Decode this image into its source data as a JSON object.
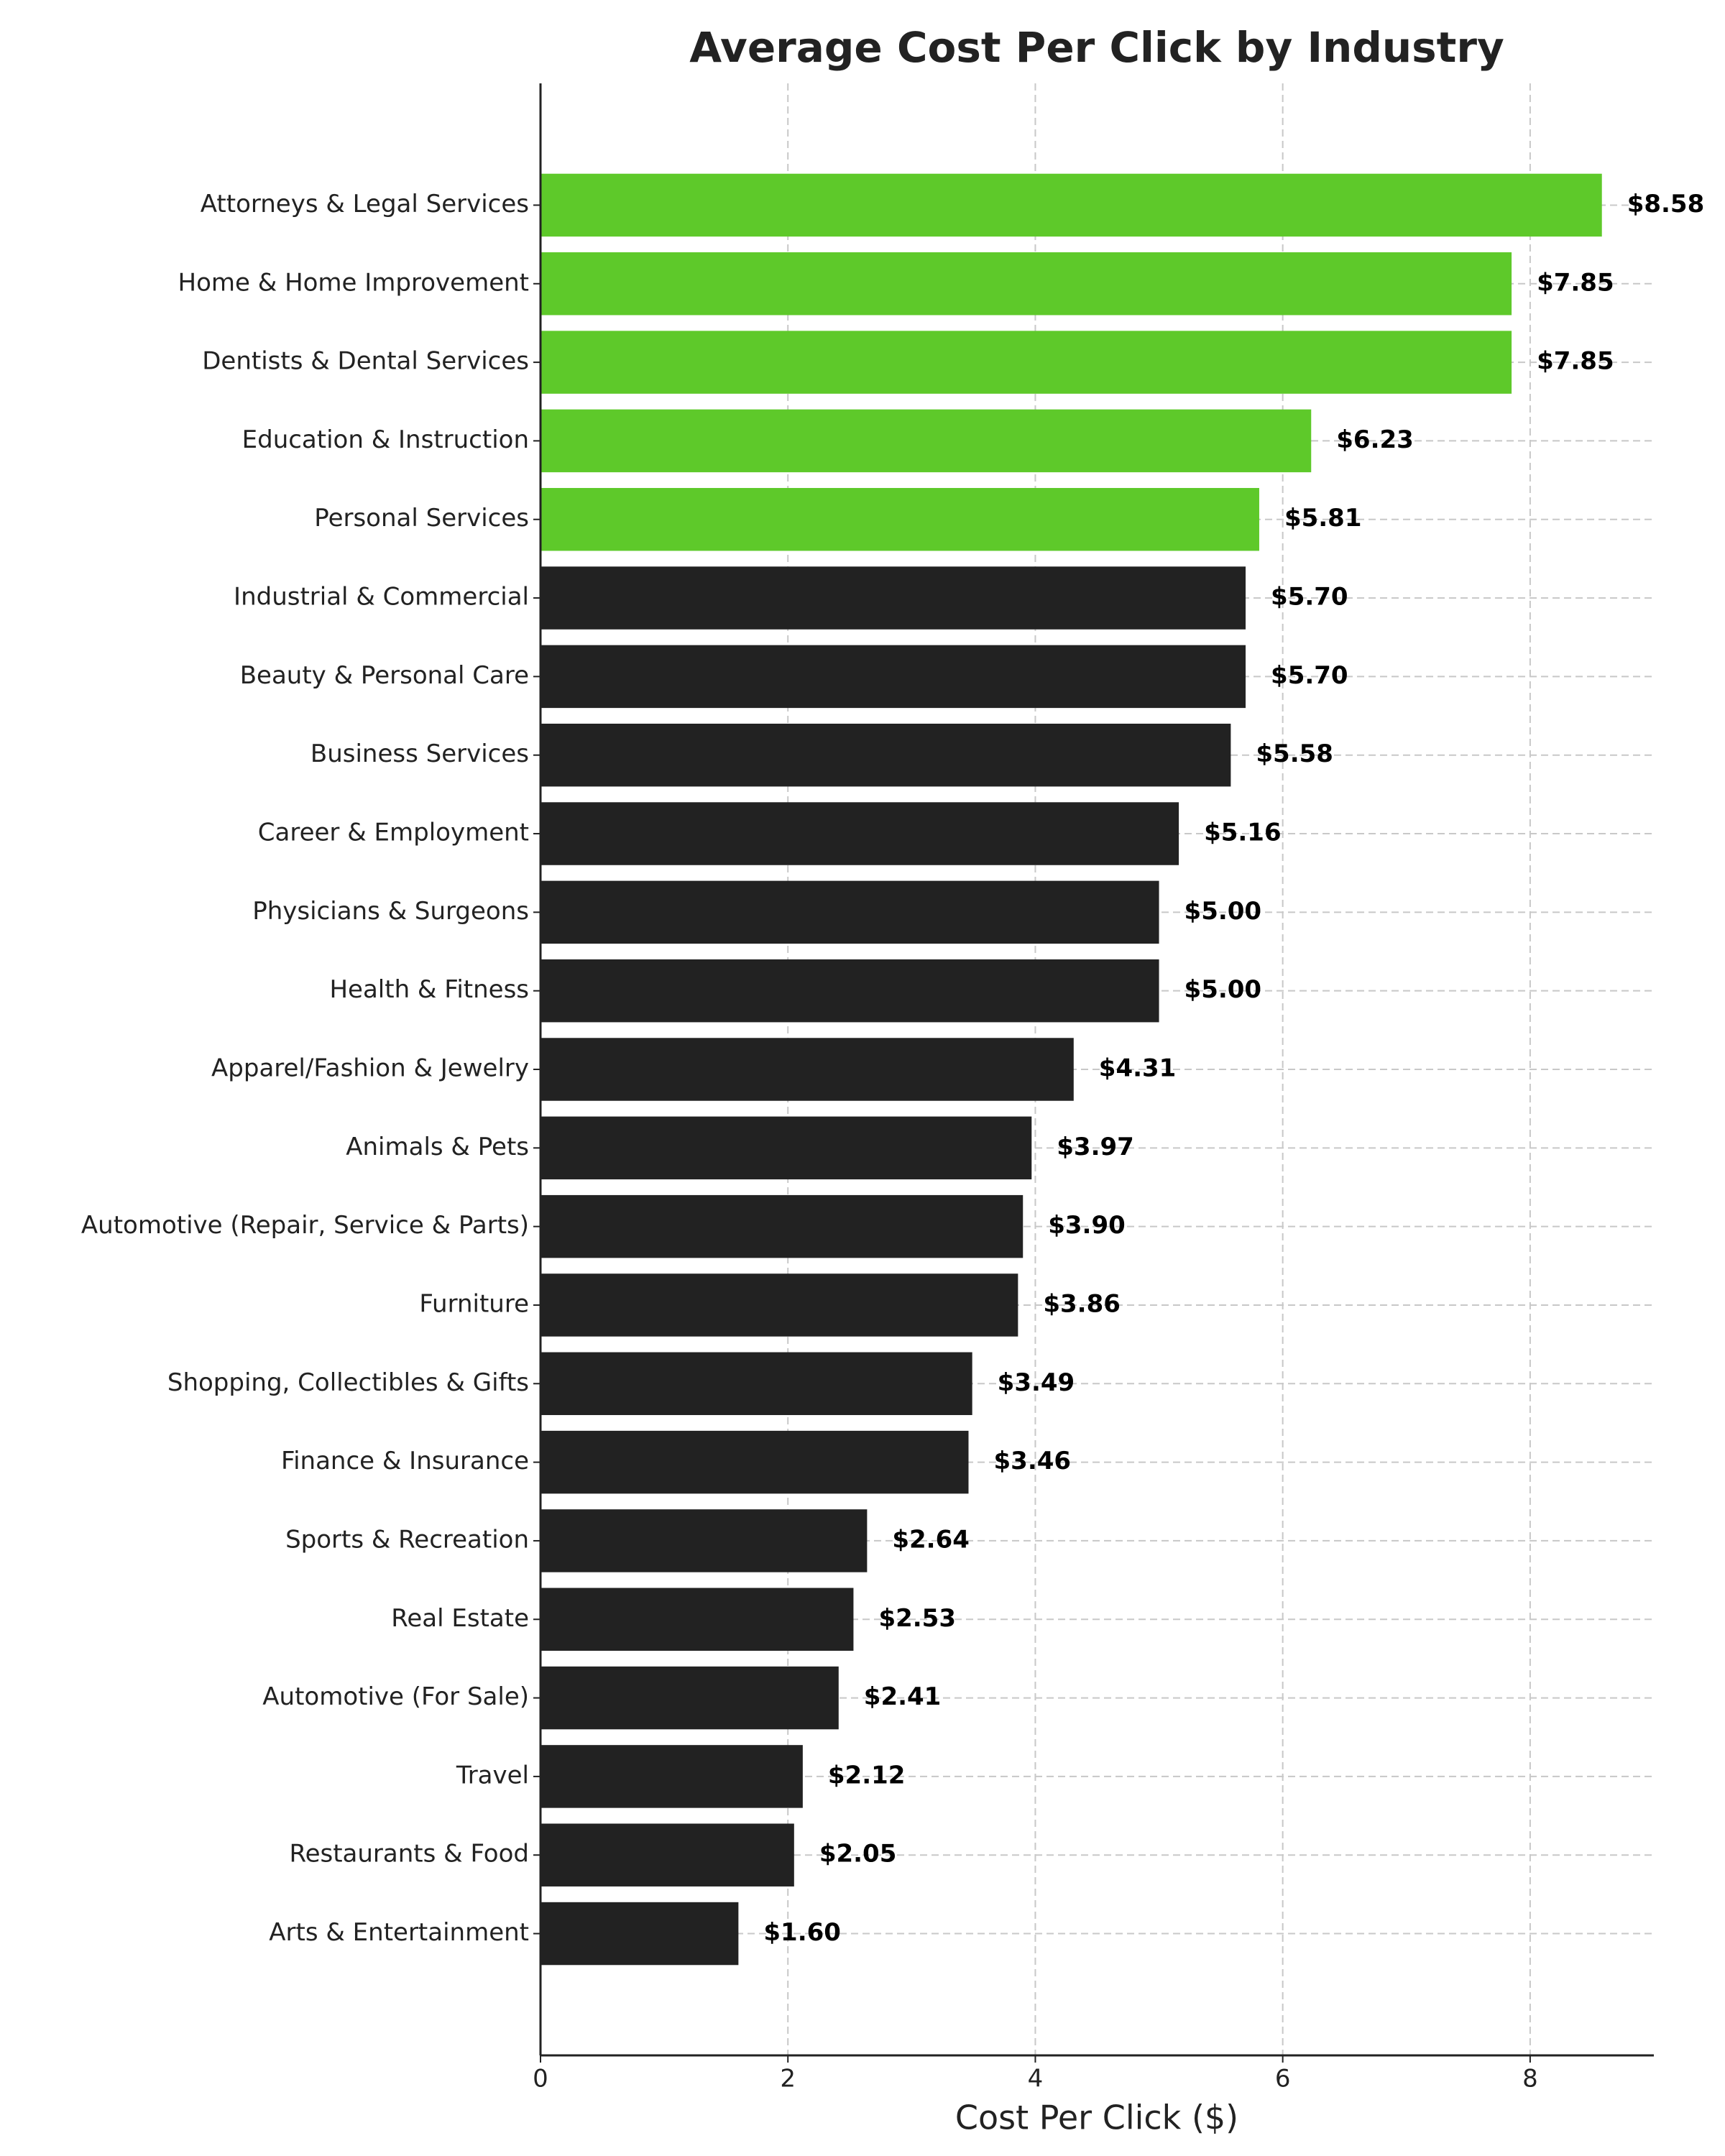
{
  "chart_data": {
    "type": "barh",
    "title": "Average Cost Per Click by Industry",
    "xlabel": "Cost Per Click ($)",
    "categories": [
      "Attorneys & Legal Services",
      "Home & Home Improvement",
      "Dentists & Dental Services",
      "Education & Instruction",
      "Personal Services",
      "Industrial & Commercial",
      "Beauty & Personal Care",
      "Business Services",
      "Career & Employment",
      "Physicians & Surgeons",
      "Health & Fitness",
      "Apparel/Fashion & Jewelry",
      "Animals & Pets",
      "Automotive (Repair, Service & Parts)",
      "Furniture",
      "Shopping, Collectibles & Gifts",
      "Finance & Insurance",
      "Sports & Recreation",
      "Real Estate",
      "Automotive (For Sale)",
      "Travel",
      "Restaurants & Food",
      "Arts & Entertainment"
    ],
    "values": [
      8.58,
      7.85,
      7.85,
      6.23,
      5.81,
      5.7,
      5.7,
      5.58,
      5.16,
      5.0,
      5.0,
      4.31,
      3.97,
      3.9,
      3.86,
      3.49,
      3.46,
      2.64,
      2.53,
      2.41,
      2.12,
      2.05,
      1.6
    ],
    "value_labels": [
      "$8.58",
      "$7.85",
      "$7.85",
      "$6.23",
      "$5.81",
      "$5.70",
      "$5.70",
      "$5.58",
      "$5.16",
      "$5.00",
      "$5.00",
      "$4.31",
      "$3.97",
      "$3.90",
      "$3.86",
      "$3.49",
      "$3.46",
      "$2.64",
      "$2.53",
      "$2.41",
      "$2.12",
      "$2.05",
      "$1.60"
    ],
    "colors": [
      "#5ec92a",
      "#5ec92a",
      "#5ec92a",
      "#5ec92a",
      "#5ec92a",
      "#222222",
      "#222222",
      "#222222",
      "#222222",
      "#222222",
      "#222222",
      "#222222",
      "#222222",
      "#222222",
      "#222222",
      "#222222",
      "#222222",
      "#222222",
      "#222222",
      "#222222",
      "#222222",
      "#222222",
      "#222222"
    ],
    "xlim": [
      0,
      9
    ],
    "xticks": [
      0,
      2,
      4,
      6,
      8
    ],
    "grid": true
  }
}
